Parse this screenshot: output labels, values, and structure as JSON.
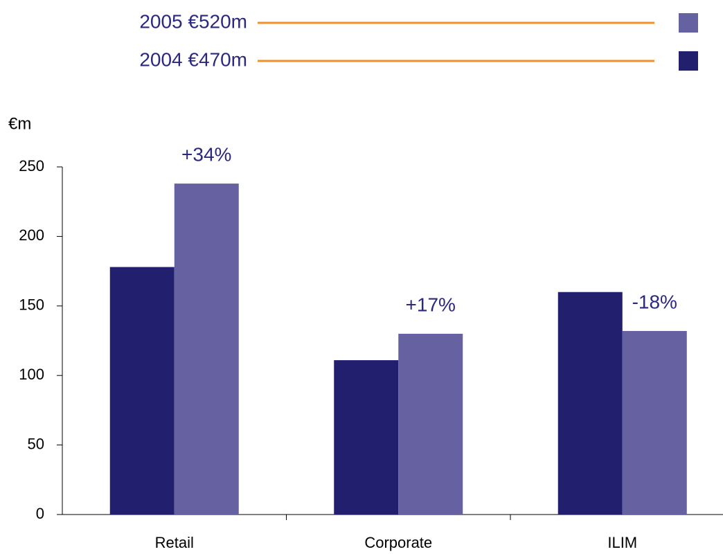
{
  "chart_data": {
    "type": "bar",
    "y_label": "€m",
    "categories": [
      "Retail",
      "Corporate",
      "ILIM"
    ],
    "series": [
      {
        "name": "2004 €470m",
        "color": "#221f6e",
        "values": [
          178,
          111,
          160
        ]
      },
      {
        "name": "2005 €520m",
        "color": "#6661a0",
        "values": [
          238,
          130,
          132
        ]
      }
    ],
    "annotations": [
      "+34%",
      "+17%",
      "-18%"
    ],
    "legend_line_color": "#f0902a",
    "ylim": [
      0,
      250
    ],
    "yticks": [
      0,
      50,
      100,
      150,
      200,
      250
    ]
  }
}
